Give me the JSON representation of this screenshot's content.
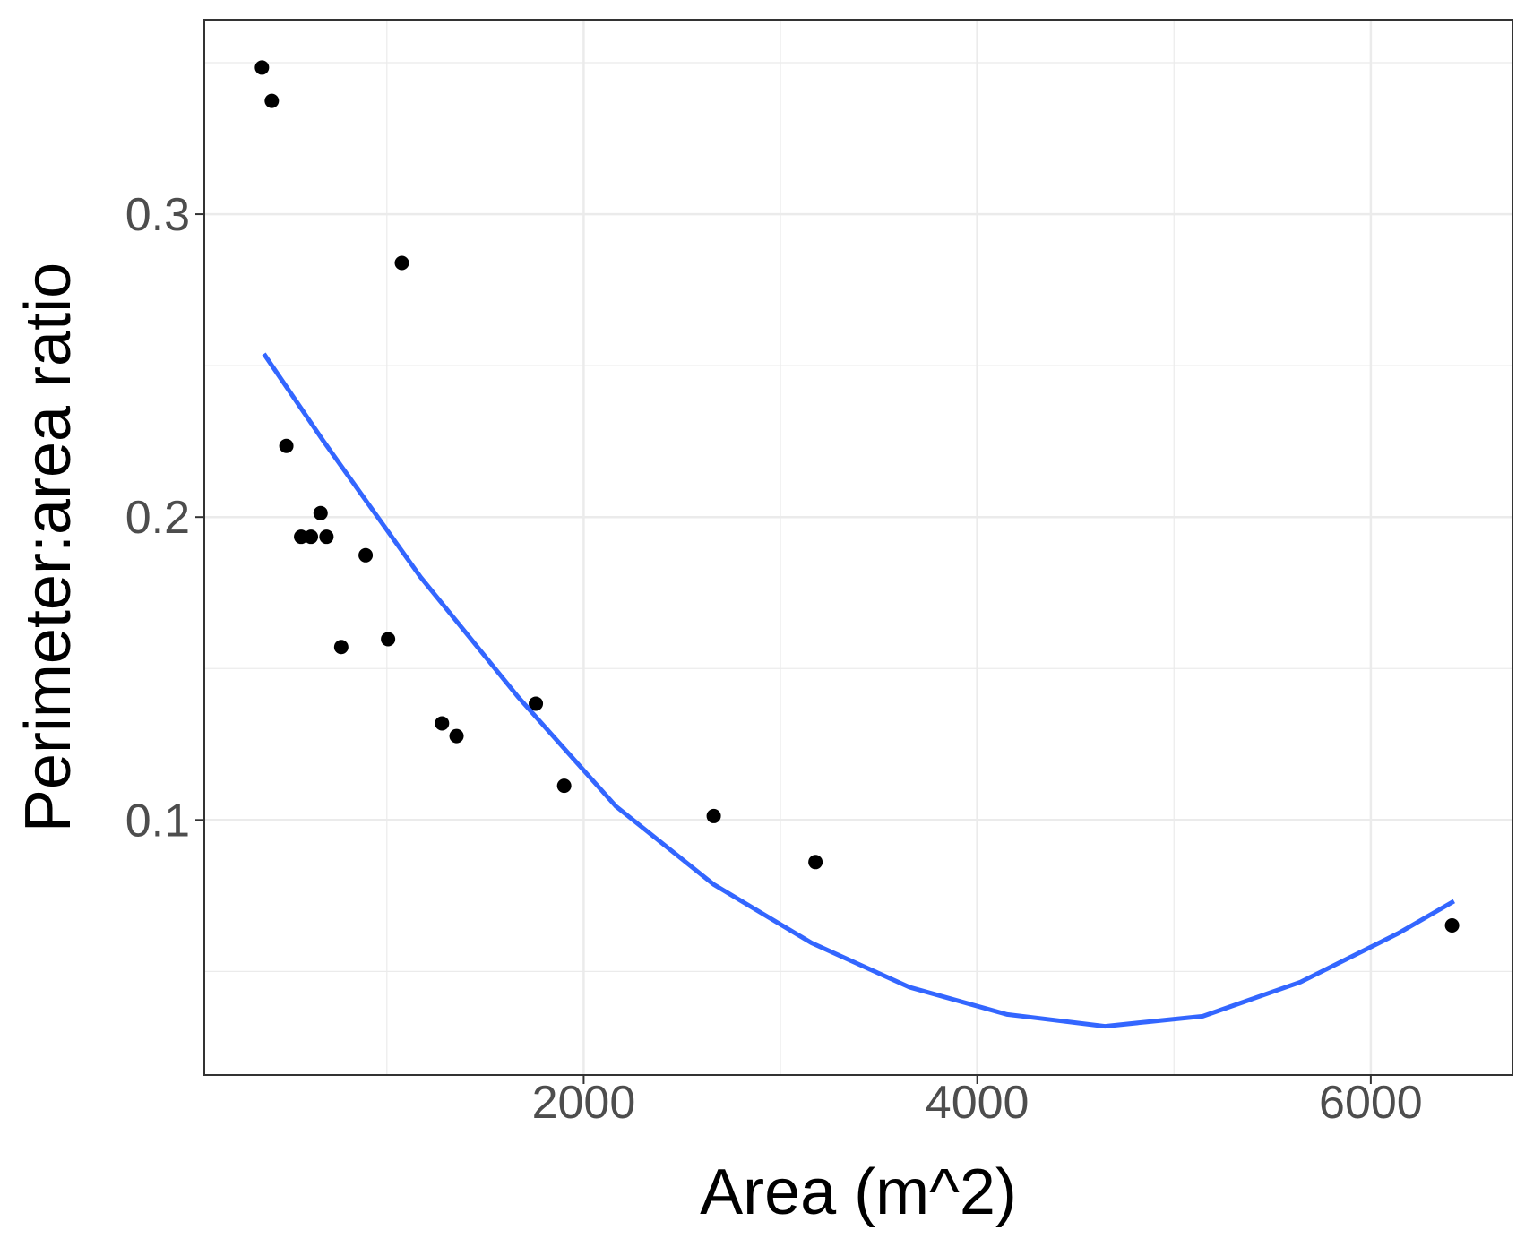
{
  "chart_data": {
    "type": "scatter",
    "x_label": "Area (m^2)",
    "y_label": "Perimeter:area ratio",
    "xlim": [
      72,
      6720
    ],
    "ylim": [
      0.0158,
      0.3642
    ],
    "xticks": [
      2000,
      4000,
      6000
    ],
    "yticks": [
      0.1,
      0.2,
      0.3
    ],
    "xminor": [
      1000,
      3000,
      5000
    ],
    "yminor": [
      0.05,
      0.15,
      0.25,
      0.35
    ],
    "grid": true,
    "series": [
      {
        "type": "scatter",
        "color": "#000000",
        "x": [
          365,
          415,
          489,
          564,
          614,
          663,
          693,
          768,
          892,
          1006,
          1076,
          1280,
          1354,
          1757,
          1901,
          2661,
          3178,
          6413
        ],
        "values": [
          0.3484,
          0.3374,
          0.2235,
          0.1935,
          0.1935,
          0.2013,
          0.1935,
          0.1571,
          0.1874,
          0.1597,
          0.2839,
          0.1319,
          0.1277,
          0.1384,
          0.1113,
          0.1013,
          0.0861,
          0.0652
        ]
      },
      {
        "type": "line",
        "color": "#3366ff",
        "x": [
          375,
          673,
          1170,
          1667,
          2164,
          2661,
          3158,
          3655,
          4152,
          4649,
          5146,
          5643,
          6140,
          6423
        ],
        "values": [
          0.2539,
          0.2255,
          0.1803,
          0.1406,
          0.1045,
          0.0787,
          0.0594,
          0.0448,
          0.0358,
          0.0319,
          0.0352,
          0.0465,
          0.0626,
          0.0732
        ]
      }
    ]
  }
}
